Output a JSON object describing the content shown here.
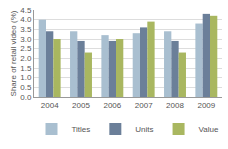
{
  "chart_data": {
    "type": "bar",
    "y_label": "Share of retail video (%)",
    "categories": [
      "2004",
      "2005",
      "2006",
      "2007",
      "2008",
      "2009"
    ],
    "series": [
      {
        "name": "Titles",
        "color": "#a9bfd0",
        "values": [
          4.0,
          3.4,
          3.2,
          3.3,
          3.4,
          3.8
        ]
      },
      {
        "name": "Units",
        "color": "#6b7f99",
        "values": [
          3.4,
          2.9,
          2.9,
          3.6,
          2.9,
          4.3
        ]
      },
      {
        "name": "Value",
        "color": "#a9b760",
        "values": [
          3.0,
          2.3,
          3.0,
          3.9,
          2.3,
          4.2
        ]
      }
    ],
    "ylim": [
      0,
      4.5
    ],
    "yticks": [
      {
        "value": 0,
        "label": "0.0"
      },
      0.5,
      {
        "value": 1,
        "label": "1.0"
      },
      1.5,
      {
        "value": 2,
        "label": "2.0"
      },
      2.5,
      {
        "value": 3,
        "label": "3.0"
      },
      3.5,
      {
        "value": 4,
        "label": "4.0"
      },
      4.5
    ],
    "grid": true,
    "legend": "bottom"
  }
}
